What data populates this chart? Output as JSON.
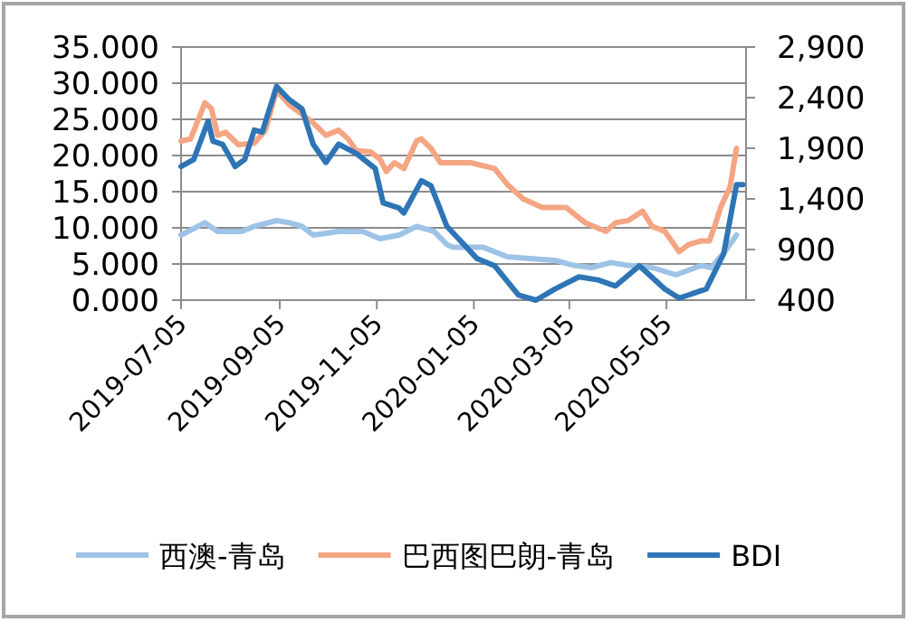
{
  "chart_data": {
    "type": "line",
    "xlim": [
      "2019-07-05",
      "2020-06-24"
    ],
    "xticks": [
      {
        "value": "2019-07-05",
        "label": "2019-07-05"
      },
      {
        "value": "2019-09-05",
        "label": "2019-09-05"
      },
      {
        "value": "2019-11-05",
        "label": "2019-11-05"
      },
      {
        "value": "2020-01-05",
        "label": "2020-01-05"
      },
      {
        "value": "2020-03-05",
        "label": "2020-03-05"
      },
      {
        "value": "2020-05-05",
        "label": "2020-05-05"
      }
    ],
    "ylim": [
      0,
      35
    ],
    "yticks": [
      {
        "value": 0,
        "label": "0.000"
      },
      {
        "value": 5,
        "label": "5.000"
      },
      {
        "value": 10,
        "label": "10.000"
      },
      {
        "value": 15,
        "label": "15.000"
      },
      {
        "value": 20,
        "label": "20.000"
      },
      {
        "value": 25,
        "label": "25.000"
      },
      {
        "value": 30,
        "label": "30.000"
      },
      {
        "value": 35,
        "label": "35.000"
      }
    ],
    "y2lim": [
      400,
      2900
    ],
    "y2ticks": [
      400,
      900,
      {
        "value": 1400,
        "label": "1,400"
      },
      {
        "value": 1900,
        "label": "1,900"
      },
      {
        "value": 2400,
        "label": "2,400"
      },
      {
        "value": 2900,
        "label": "2,900"
      }
    ],
    "grid": "y",
    "legend": "bottom",
    "marker": "none",
    "line_style": "solid",
    "series": [
      {
        "name": "西澳-青岛",
        "color": "#9dc3e6",
        "x": [
          "2019-07-05",
          "2019-07-20",
          "2019-07-28",
          "2019-08-12",
          "2019-08-20",
          "2019-09-03",
          "2019-09-11",
          "2019-09-19",
          "2019-09-26",
          "2019-10-12",
          "2019-10-27",
          "2019-11-07",
          "2019-11-19",
          "2019-11-30",
          "2019-12-11",
          "2019-12-19",
          "2019-12-23",
          "2020-01-11",
          "2020-01-26",
          "2020-02-13",
          "2020-02-25",
          "2020-03-08",
          "2020-03-19",
          "2020-03-31",
          "2020-04-11",
          "2020-04-26",
          "2020-05-11",
          "2020-05-27",
          "2020-06-02",
          "2020-06-10",
          "2020-06-18"
        ],
        "values": [
          9.0,
          10.7,
          9.5,
          9.5,
          10.2,
          11.0,
          10.7,
          10.2,
          9.0,
          9.5,
          9.5,
          8.5,
          9.0,
          10.2,
          9.5,
          7.7,
          7.3,
          7.3,
          6.0,
          5.7,
          5.5,
          4.8,
          4.5,
          5.2,
          4.8,
          4.5,
          3.5,
          4.8,
          4.5,
          6.5,
          9.0
        ]
      },
      {
        "name": "巴西图巴朗-青岛",
        "color": "#f4a582",
        "x": [
          "2019-07-05",
          "2019-07-11",
          "2019-07-20",
          "2019-07-24",
          "2019-07-28",
          "2019-08-02",
          "2019-08-10",
          "2019-08-20",
          "2019-08-27",
          "2019-09-03",
          "2019-09-11",
          "2019-09-19",
          "2019-09-26",
          "2019-10-04",
          "2019-10-12",
          "2019-10-18",
          "2019-10-23",
          "2019-11-01",
          "2019-11-07",
          "2019-11-11",
          "2019-11-16",
          "2019-11-22",
          "2019-11-30",
          "2019-12-03",
          "2019-12-09",
          "2019-12-15",
          "2019-12-23",
          "2020-01-03",
          "2020-01-18",
          "2020-01-26",
          "2020-02-05",
          "2020-02-17",
          "2020-03-03",
          "2020-03-15",
          "2020-03-28",
          "2020-04-03",
          "2020-04-11",
          "2020-04-20",
          "2020-04-26",
          "2020-05-04",
          "2020-05-13",
          "2020-05-19",
          "2020-05-27",
          "2020-06-01",
          "2020-06-05",
          "2020-06-08",
          "2020-06-14",
          "2020-06-18"
        ],
        "values": [
          22.0,
          22.3,
          27.3,
          26.5,
          22.8,
          23.2,
          21.5,
          21.7,
          23.5,
          29.0,
          27.0,
          25.7,
          24.5,
          22.8,
          23.5,
          22.3,
          20.7,
          20.5,
          19.5,
          17.8,
          19.0,
          18.2,
          22.0,
          22.3,
          21.0,
          19.0,
          19.0,
          19.0,
          18.2,
          16.0,
          14.0,
          12.8,
          12.8,
          10.7,
          9.5,
          10.7,
          11.0,
          12.3,
          10.2,
          9.5,
          6.7,
          7.7,
          8.2,
          8.2,
          10.7,
          12.8,
          15.7,
          21.0
        ]
      },
      {
        "name": "BDI",
        "color": "#2e75b6",
        "axis": "y2",
        "x": [
          "2019-07-05",
          "2019-07-13",
          "2019-07-22",
          "2019-07-25",
          "2019-07-31",
          "2019-08-08",
          "2019-08-14",
          "2019-08-20",
          "2019-08-25",
          "2019-09-03",
          "2019-09-11",
          "2019-09-19",
          "2019-09-26",
          "2019-10-04",
          "2019-10-12",
          "2019-10-23",
          "2019-11-04",
          "2019-11-09",
          "2019-11-19",
          "2019-11-22",
          "2019-12-03",
          "2019-12-09",
          "2019-12-19",
          "2020-01-07",
          "2020-01-18",
          "2020-02-02",
          "2020-02-13",
          "2020-02-25",
          "2020-03-11",
          "2020-03-23",
          "2020-04-03",
          "2020-04-18",
          "2020-05-04",
          "2020-05-13",
          "2020-05-30",
          "2020-06-10",
          "2020-06-18",
          "2020-06-22"
        ],
        "values": [
          1720,
          1790,
          2170,
          1970,
          1940,
          1720,
          1790,
          2080,
          2060,
          2510,
          2380,
          2290,
          1940,
          1760,
          1940,
          1850,
          1700,
          1360,
          1310,
          1260,
          1580,
          1530,
          1130,
          810,
          740,
          450,
          400,
          510,
          630,
          600,
          540,
          740,
          510,
          420,
          510,
          860,
          1540,
          1540
        ]
      }
    ]
  }
}
